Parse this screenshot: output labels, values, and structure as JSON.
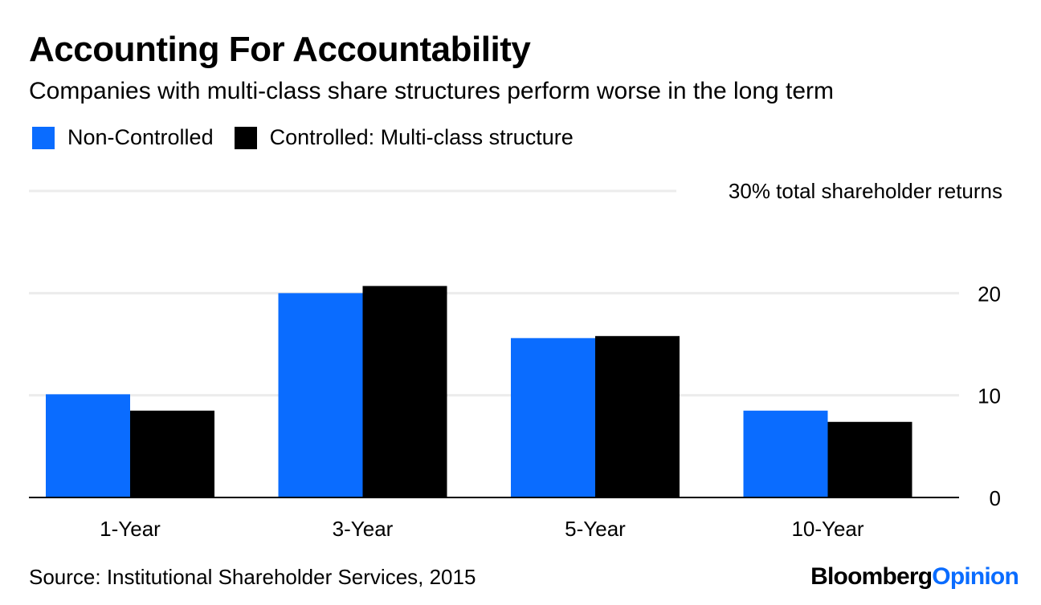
{
  "header": {
    "title": "Accounting For Accountability",
    "subtitle": "Companies with multi-class share structures perform worse in the long term"
  },
  "chart_data": {
    "type": "bar",
    "title": "Accounting For Accountability",
    "subtitle": "Companies with multi-class share structures perform worse in the long term",
    "categories": [
      "1-Year",
      "3-Year",
      "5-Year",
      "10-Year"
    ],
    "series": [
      {
        "name": "Non-Controlled",
        "color": "#0a6cff",
        "values": [
          10.1,
          20.0,
          15.6,
          8.5
        ]
      },
      {
        "name": "Controlled: Multi-class structure",
        "color": "#000000",
        "values": [
          8.5,
          20.7,
          15.8,
          7.4
        ]
      }
    ],
    "ylim": [
      0,
      30
    ],
    "yticks": [
      0,
      10,
      20
    ],
    "top_tick_label": "30% total shareholder returns",
    "grid": true,
    "legend_position": "top-left"
  },
  "footer": {
    "source": "Source: Institutional Shareholder Services, 2015",
    "brand_part1": "Bloomberg",
    "brand_part2": "Opinion",
    "brand_color1": "#000000",
    "brand_color2": "#0a6cff"
  }
}
